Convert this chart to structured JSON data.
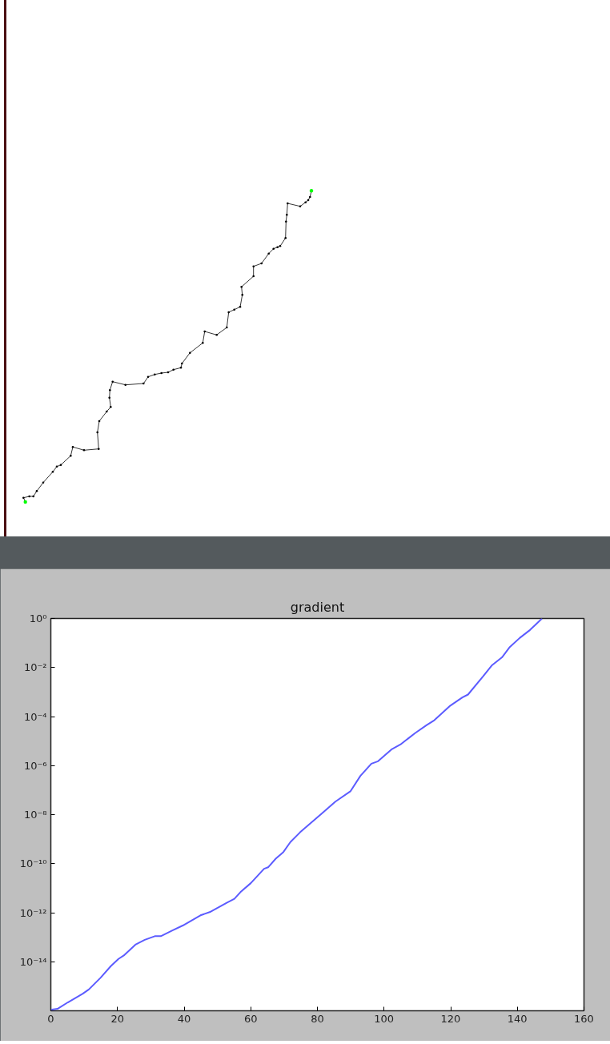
{
  "chart_data": {
    "type": "line",
    "title": "gradient",
    "log": "y",
    "grid": false,
    "xlim": [
      0,
      160
    ],
    "xticks": [
      0,
      20,
      40,
      60,
      80,
      100,
      120,
      140,
      160
    ],
    "ylim": [
      1e-16,
      1
    ],
    "yticks": [
      {
        "value": 1e-14,
        "label": "10⁻¹⁴"
      },
      {
        "value": 1e-12,
        "label": "10⁻¹²"
      },
      {
        "value": 1e-10,
        "label": "10⁻¹⁰"
      },
      {
        "value": 1e-08,
        "label": "10⁻⁸"
      },
      {
        "value": 1e-06,
        "label": "10⁻⁶"
      },
      {
        "value": 0.0001,
        "label": "10⁻⁴"
      },
      {
        "value": 0.01,
        "label": "10⁻²"
      },
      {
        "value": 1,
        "label": "10⁰"
      }
    ],
    "series": [
      {
        "color": "#5c5cff",
        "x": [
          0,
          2.0,
          5.1,
          9.6,
          11.4,
          14.9,
          18.0,
          20.3,
          21.9,
          25.5,
          28.2,
          31.2,
          33.0,
          36.5,
          39.6,
          44.9,
          48.0,
          52.9,
          55.1,
          56.9,
          60.0,
          64.0,
          65.2,
          67.5,
          69.8,
          71.9,
          74.8,
          81.9,
          85.4,
          89.9,
          92.9,
          96.2,
          98.2,
          102.2,
          104.9,
          109.3,
          112.8,
          115.1,
          119.9,
          123.5,
          125.2,
          129.7,
          132.3,
          135.4,
          137.6,
          140.7,
          143.8,
          145.6,
          147.4
        ],
        "values": [
          1.1e-16,
          1.2e-16,
          2.2e-16,
          5e-16,
          7.4e-16,
          2.2e-15,
          6.6e-15,
          1.3e-14,
          1.8e-14,
          5.1e-14,
          7.8e-14,
          1.1e-13,
          1.1e-13,
          1.9e-13,
          3e-13,
          7.8e-13,
          1.1e-12,
          2.6e-12,
          3.7e-12,
          6.9e-12,
          1.6e-11,
          6.2e-11,
          7.1e-11,
          1.6e-10,
          3e-10,
          7.6e-10,
          1.9e-09,
          1.3e-08,
          3.4e-08,
          8.9e-08,
          3.8e-07,
          1.2e-06,
          1.5e-06,
          4.5e-06,
          7.2e-06,
          2.1e-05,
          4.5e-05,
          7.1e-05,
          0.00028,
          0.0006,
          0.00079,
          0.0043,
          0.012,
          0.026,
          0.065,
          0.16,
          0.34,
          0.58,
          1.0
        ]
      }
    ]
  }
}
